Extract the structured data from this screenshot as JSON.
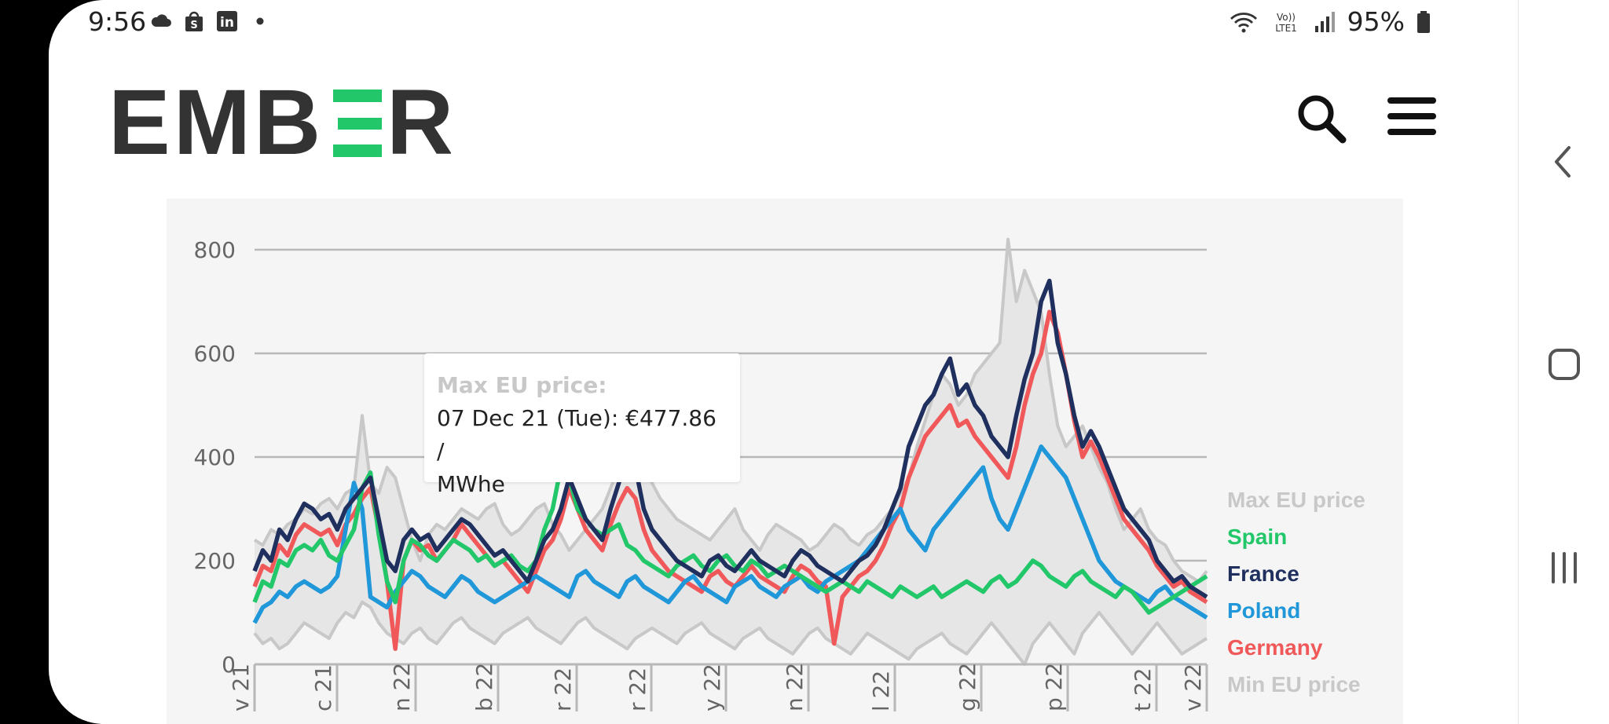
{
  "status_bar": {
    "time": "9:56",
    "battery": "95%",
    "left_icons": [
      "cloud-icon",
      "shopping-bag-icon",
      "linkedin-icon",
      "dot-icon"
    ],
    "right_icons": [
      "wifi-icon",
      "volte-icon",
      "signal-icon",
      "battery-icon"
    ]
  },
  "header": {
    "logo_text": "EMBER",
    "logo_accent_color": "#22c76a",
    "logo_color": "#333333"
  },
  "tooltip": {
    "title": "Max EU price:",
    "line1": "07 Dec 21 (Tue): €477.86 /",
    "line2": "MWhe"
  },
  "chart_data": {
    "type": "line",
    "y_ticks": [
      "800",
      "600",
      "400",
      "200",
      "0"
    ],
    "ylim": [
      0,
      800
    ],
    "x_tick_labels": [
      "v 21",
      "c 21",
      "n 22",
      "b 22",
      "r 22",
      "r 22",
      "y 22",
      "n 22",
      "l 22",
      "g 22",
      "p 22",
      "t 22",
      "v 22"
    ],
    "grid": true,
    "legend_position": "right",
    "series": [
      {
        "name": "Max EU price",
        "color": "#c8c8c8",
        "values": [
          240,
          230,
          260,
          250,
          270,
          280,
          300,
          290,
          310,
          320,
          300,
          330,
          340,
          480,
          350,
          330,
          380,
          360,
          300,
          240,
          200,
          250,
          270,
          260,
          280,
          300,
          290,
          280,
          300,
          310,
          270,
          250,
          260,
          280,
          300,
          310,
          270,
          250,
          220,
          240,
          260,
          280,
          300,
          340,
          380,
          420,
          400,
          380,
          350,
          320,
          300,
          280,
          270,
          260,
          250,
          240,
          260,
          280,
          300,
          260,
          240,
          220,
          250,
          270,
          260,
          250,
          240,
          220,
          230,
          250,
          270,
          260,
          240,
          230,
          250,
          260,
          280,
          300,
          330,
          360,
          420,
          470,
          520,
          560,
          540,
          500,
          520,
          560,
          580,
          600,
          620,
          820,
          700,
          760,
          720,
          680,
          560,
          460,
          420,
          440,
          460,
          420,
          380,
          350,
          300,
          260,
          280,
          300,
          260,
          240,
          230,
          200,
          180,
          170,
          160,
          180
        ]
      },
      {
        "name": "France",
        "color": "#1f2f5e",
        "values": [
          180,
          220,
          200,
          260,
          240,
          280,
          310,
          300,
          280,
          290,
          260,
          300,
          320,
          340,
          360,
          280,
          200,
          180,
          240,
          260,
          240,
          250,
          220,
          240,
          260,
          280,
          270,
          250,
          230,
          210,
          220,
          200,
          180,
          160,
          200,
          240,
          260,
          300,
          360,
          320,
          280,
          260,
          240,
          300,
          350,
          400,
          380,
          300,
          260,
          240,
          220,
          200,
          190,
          180,
          170,
          200,
          210,
          190,
          180,
          200,
          220,
          200,
          190,
          180,
          170,
          200,
          220,
          210,
          190,
          180,
          170,
          160,
          180,
          200,
          210,
          230,
          260,
          300,
          340,
          420,
          460,
          500,
          520,
          560,
          590,
          520,
          540,
          500,
          480,
          440,
          420,
          400,
          480,
          550,
          600,
          700,
          740,
          620,
          560,
          480,
          420,
          450,
          420,
          380,
          340,
          300,
          280,
          260,
          240,
          200,
          180,
          160,
          170,
          150,
          140,
          130
        ]
      },
      {
        "name": "Germany",
        "color": "#f0585a",
        "values": [
          150,
          190,
          180,
          230,
          210,
          250,
          270,
          260,
          250,
          260,
          230,
          270,
          290,
          320,
          340,
          260,
          160,
          30,
          200,
          240,
          220,
          230,
          200,
          220,
          240,
          270,
          250,
          230,
          210,
          190,
          200,
          180,
          160,
          140,
          180,
          220,
          240,
          280,
          340,
          300,
          260,
          240,
          220,
          270,
          310,
          340,
          320,
          260,
          220,
          200,
          180,
          170,
          160,
          150,
          140,
          170,
          180,
          160,
          150,
          170,
          190,
          170,
          160,
          150,
          140,
          170,
          190,
          180,
          160,
          150,
          40,
          130,
          150,
          170,
          180,
          200,
          230,
          270,
          300,
          360,
          400,
          440,
          460,
          480,
          500,
          460,
          470,
          440,
          420,
          400,
          380,
          360,
          420,
          500,
          560,
          600,
          680,
          640,
          560,
          470,
          400,
          430,
          400,
          360,
          320,
          280,
          260,
          240,
          220,
          190,
          170,
          150,
          160,
          140,
          130,
          120
        ]
      },
      {
        "name": "Poland",
        "color": "#1f97d8",
        "values": [
          80,
          110,
          120,
          140,
          130,
          150,
          160,
          150,
          140,
          150,
          170,
          260,
          350,
          300,
          130,
          120,
          110,
          140,
          160,
          180,
          170,
          150,
          140,
          130,
          150,
          170,
          160,
          140,
          130,
          120,
          130,
          140,
          150,
          160,
          170,
          160,
          150,
          140,
          130,
          170,
          180,
          160,
          150,
          140,
          130,
          160,
          170,
          150,
          140,
          130,
          120,
          140,
          160,
          170,
          150,
          140,
          130,
          120,
          150,
          160,
          170,
          150,
          140,
          130,
          150,
          160,
          170,
          150,
          140,
          160,
          170,
          180,
          190,
          200,
          220,
          240,
          260,
          280,
          300,
          260,
          240,
          220,
          260,
          280,
          300,
          320,
          340,
          360,
          380,
          320,
          280,
          260,
          300,
          340,
          380,
          420,
          400,
          380,
          360,
          320,
          280,
          240,
          200,
          180,
          160,
          150,
          140,
          130,
          120,
          140,
          150,
          130,
          120,
          110,
          100,
          90
        ]
      },
      {
        "name": "Spain",
        "color": "#22c76a",
        "values": [
          120,
          160,
          150,
          200,
          190,
          220,
          230,
          220,
          240,
          210,
          200,
          230,
          260,
          340,
          370,
          250,
          160,
          120,
          200,
          240,
          230,
          210,
          200,
          220,
          240,
          230,
          220,
          200,
          210,
          190,
          200,
          210,
          190,
          180,
          200,
          260,
          300,
          380,
          360,
          300,
          280,
          260,
          250,
          260,
          270,
          230,
          220,
          200,
          190,
          180,
          170,
          190,
          200,
          210,
          190,
          180,
          200,
          210,
          190,
          180,
          200,
          190,
          170,
          180,
          190,
          180,
          170,
          160,
          150,
          140,
          150,
          160,
          150,
          140,
          160,
          150,
          140,
          130,
          150,
          140,
          130,
          140,
          150,
          130,
          140,
          150,
          160,
          150,
          140,
          160,
          170,
          150,
          160,
          180,
          200,
          190,
          170,
          160,
          150,
          170,
          180,
          160,
          150,
          140,
          130,
          150,
          140,
          120,
          100,
          110,
          120,
          130,
          140,
          150,
          160,
          170
        ]
      },
      {
        "name": "Min EU price",
        "color": "#c8c8c8",
        "values": [
          60,
          40,
          50,
          30,
          40,
          60,
          80,
          70,
          60,
          50,
          80,
          100,
          90,
          120,
          110,
          80,
          60,
          50,
          40,
          60,
          70,
          50,
          40,
          60,
          80,
          90,
          70,
          60,
          50,
          40,
          60,
          70,
          80,
          90,
          70,
          60,
          50,
          40,
          60,
          80,
          90,
          70,
          60,
          50,
          40,
          30,
          50,
          60,
          70,
          60,
          50,
          40,
          60,
          70,
          80,
          60,
          50,
          40,
          30,
          50,
          60,
          70,
          50,
          40,
          30,
          20,
          40,
          60,
          70,
          50,
          40,
          30,
          20,
          40,
          60,
          50,
          40,
          30,
          20,
          10,
          30,
          40,
          50,
          60,
          40,
          30,
          20,
          40,
          60,
          80,
          60,
          40,
          20,
          0,
          40,
          60,
          80,
          60,
          40,
          20,
          60,
          80,
          100,
          80,
          60,
          40,
          20,
          40,
          60,
          80,
          60,
          40,
          20,
          30,
          40,
          50
        ]
      }
    ]
  },
  "legend": [
    {
      "label": "Max EU price",
      "color": "#c8c8c8"
    },
    {
      "label": "Spain",
      "color": "#22c76a"
    },
    {
      "label": "France",
      "color": "#1f2f5e"
    },
    {
      "label": "Poland",
      "color": "#1f97d8"
    },
    {
      "label": "Germany",
      "color": "#f0585a"
    },
    {
      "label": "Min EU price",
      "color": "#c8c8c8"
    }
  ],
  "nav": {
    "icons": [
      "back-icon",
      "home-icon",
      "recents-icon"
    ]
  }
}
